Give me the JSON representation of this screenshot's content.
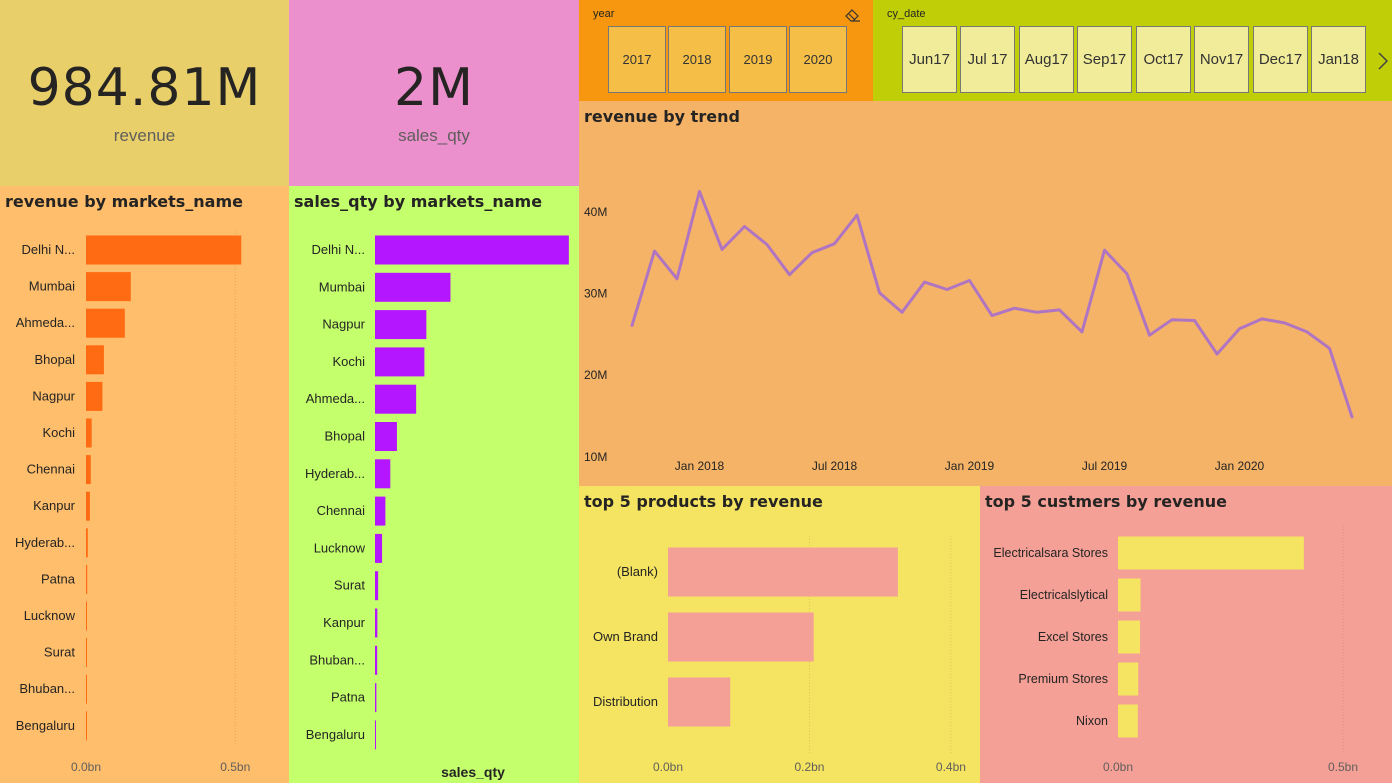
{
  "kpis": {
    "revenue": {
      "value": "984.81M",
      "label": "revenue"
    },
    "sales_qty": {
      "value": "2M",
      "label": "sales_qty"
    }
  },
  "slicers": {
    "year": {
      "title": "year",
      "options": [
        "2017",
        "2018",
        "2019",
        "2020"
      ]
    },
    "cy_date": {
      "title": "cy_date",
      "options": [
        [
          "Jun",
          "17"
        ],
        [
          "Jul 17"
        ],
        [
          "Aug",
          "17"
        ],
        [
          "Sep",
          "17"
        ],
        [
          "Oct",
          "17"
        ],
        [
          "Nov",
          "17"
        ],
        [
          "Dec",
          "17"
        ],
        [
          "Jan",
          "18"
        ]
      ]
    }
  },
  "colors": {
    "revenue_kpi_bg": "#e8cf6a",
    "qty_kpi_bg": "#ec8fcd",
    "year_slicer_bg": "#f7970f",
    "date_slicer_bg": "#bfce06",
    "market_rev_bg": "#ffbe6b",
    "market_rev_bar": "#ff6b13",
    "market_qty_bg": "#c4ff6c",
    "market_qty_bar": "#b417ff",
    "trend_bg": "#f4b366",
    "trend_line": "#b075c2",
    "products_bg": "#f4e461",
    "products_bar": "#f5a097",
    "customers_bg": "#f5a097",
    "customers_bar": "#f4e461"
  },
  "chart_data": [
    {
      "id": "market-revenue",
      "type": "bar",
      "orientation": "horizontal",
      "title": "revenue by markets_name",
      "categories": [
        "Delhi N...",
        "Mumbai",
        "Ahmeda...",
        "Bhopal",
        "Nagpur",
        "Kochi",
        "Chennai",
        "Kanpur",
        "Hyderab...",
        "Patna",
        "Lucknow",
        "Surat",
        "Bhuban...",
        "Bengaluru"
      ],
      "values": [
        0.52,
        0.15,
        0.13,
        0.06,
        0.055,
        0.019,
        0.016,
        0.013,
        0.006,
        0.004,
        0.003,
        0.002,
        0.002,
        0.0004
      ],
      "ticks": [
        {
          "value": 0,
          "label": "0.0bn"
        },
        {
          "value": 0.5,
          "label": "0.5bn"
        }
      ],
      "xlim": [
        0,
        0.68
      ],
      "grid": true
    },
    {
      "id": "market-qty",
      "type": "bar",
      "orientation": "horizontal",
      "title": "sales_qty by markets_name",
      "xlabel": "sales_qty",
      "categories": [
        "Delhi N...",
        "Mumbai",
        "Nagpur",
        "Kochi",
        "Ahmeda...",
        "Bhopal",
        "Hyderab...",
        "Chennai",
        "Lucknow",
        "Surat",
        "Kanpur",
        "Bhuban...",
        "Patna",
        "Bengaluru"
      ],
      "values": [
        989000,
        385000,
        262000,
        252000,
        210000,
        112000,
        78000,
        53000,
        36000,
        16000,
        12000,
        11000,
        7000,
        3000
      ],
      "xlim": [
        0,
        1000000
      ],
      "grid": false
    },
    {
      "id": "revenue-trend",
      "type": "line",
      "title": "revenue by trend",
      "x": [
        "2017-10",
        "2017-11",
        "2017-12",
        "2018-01",
        "2018-02",
        "2018-03",
        "2018-04",
        "2018-05",
        "2018-06",
        "2018-07",
        "2018-08",
        "2018-09",
        "2018-10",
        "2018-11",
        "2018-12",
        "2019-01",
        "2019-02",
        "2019-03",
        "2019-04",
        "2019-05",
        "2019-06",
        "2019-07",
        "2019-08",
        "2019-09",
        "2019-10",
        "2019-11",
        "2019-12",
        "2020-01",
        "2020-02",
        "2020-03",
        "2020-04",
        "2020-05",
        "2020-06"
      ],
      "values": [
        26.1,
        35.2,
        31.8,
        42.5,
        35.4,
        38.2,
        36.0,
        32.3,
        35.0,
        36.1,
        39.6,
        30.1,
        27.7,
        31.4,
        30.5,
        31.6,
        27.3,
        28.2,
        27.7,
        28.0,
        25.3,
        35.3,
        32.4,
        24.9,
        26.8,
        26.7,
        22.6,
        25.7,
        26.9,
        26.4,
        25.3,
        23.3,
        14.9
      ],
      "xticks": [
        {
          "x": "2018-01",
          "label": "Jan 2018"
        },
        {
          "x": "2018-07",
          "label": "Jul 2018"
        },
        {
          "x": "2019-01",
          "label": "Jan 2019"
        },
        {
          "x": "2019-07",
          "label": "Jul 2019"
        },
        {
          "x": "2020-01",
          "label": "Jan 2020"
        }
      ],
      "yticks": [
        {
          "value": 10,
          "label": "10M"
        },
        {
          "value": 20,
          "label": "20M"
        },
        {
          "value": 30,
          "label": "30M"
        },
        {
          "value": 40,
          "label": "40M"
        }
      ],
      "ylim": [
        9.5,
        45
      ],
      "grid": false
    },
    {
      "id": "top-products",
      "type": "bar",
      "orientation": "horizontal",
      "title": "top 5 products by revenue",
      "categories": [
        "(Blank)",
        "Own Brand",
        "Distribution"
      ],
      "values": [
        0.325,
        0.206,
        0.088
      ],
      "ticks": [
        {
          "value": 0,
          "label": "0.0bn"
        },
        {
          "value": 0.2,
          "label": "0.2bn"
        },
        {
          "value": 0.4,
          "label": "0.4bn"
        }
      ],
      "xlim": [
        0,
        0.41
      ],
      "grid": true
    },
    {
      "id": "top-customers",
      "type": "bar",
      "orientation": "horizontal",
      "title": "top 5 custmers by revenue",
      "categories": [
        "Electricalsara Stores",
        "Electricalslytical",
        "Excel Stores",
        "Premium Stores",
        "Nixon"
      ],
      "values": [
        0.413,
        0.05,
        0.049,
        0.045,
        0.044
      ],
      "ticks": [
        {
          "value": 0,
          "label": "0.0bn"
        },
        {
          "value": 0.5,
          "label": "0.5bn"
        }
      ],
      "xlim": [
        0,
        0.6
      ],
      "grid": true
    }
  ]
}
